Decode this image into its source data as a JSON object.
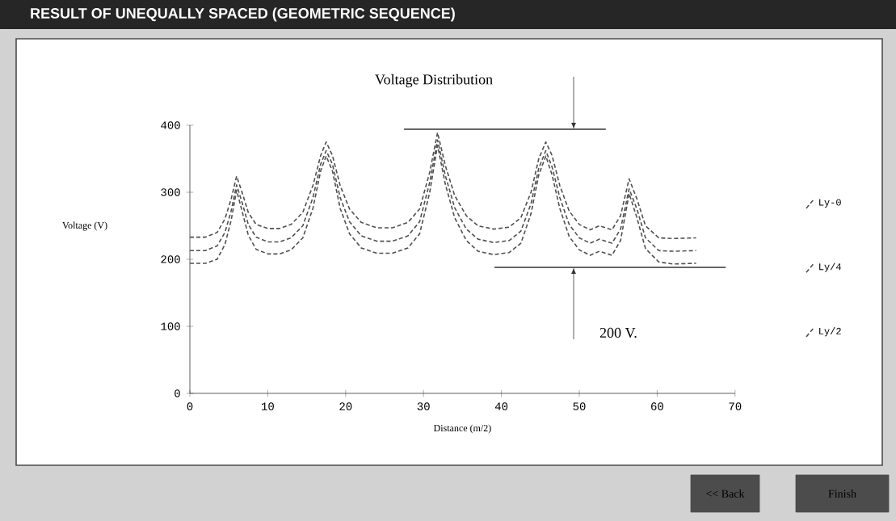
{
  "chart_data": {
    "type": "line",
    "title": "RESULT OF UNEQUALLY SPACED (GEOMETRIC SEQUENCE)",
    "xlabel": "Distance (m/2)",
    "x": [
      0,
      2,
      3.5,
      4.5,
      5.3,
      6.0,
      6.7,
      7.5,
      8.5,
      10,
      11.5,
      13,
      14.5,
      15.8,
      16.8,
      17.5,
      18.3,
      19.3,
      20.5,
      22,
      24,
      26,
      28,
      29.5,
      30.8,
      31.8,
      32.8,
      34,
      35.5,
      37,
      39,
      41,
      42.5,
      43.8,
      44.8,
      45.7,
      46.5,
      47.5,
      48.7,
      50,
      51.4,
      52.6,
      54.2,
      55.3,
      56.4,
      57.4,
      58.5,
      60.2,
      62,
      65
    ],
    "series": [
      {
        "name": "Ly-0",
        "color": "#505050",
        "values": [
          233,
          233,
          240,
          260,
          290,
          324,
          300,
          270,
          252,
          246,
          246,
          252,
          270,
          310,
          355,
          375,
          355,
          310,
          275,
          255,
          247,
          247,
          255,
          275,
          330,
          389,
          340,
          295,
          265,
          250,
          245,
          248,
          262,
          300,
          350,
          375,
          355,
          310,
          272,
          252,
          244,
          250,
          244,
          265,
          320,
          290,
          250,
          232,
          231,
          232
        ]
      },
      {
        "name": "Ly/4",
        "color": "#505050",
        "values": [
          213,
          213,
          220,
          240,
          272,
          311,
          285,
          252,
          233,
          226,
          226,
          232,
          250,
          292,
          342,
          362,
          342,
          292,
          256,
          235,
          227,
          227,
          235,
          256,
          315,
          378,
          325,
          277,
          245,
          230,
          225,
          228,
          242,
          283,
          336,
          362,
          338,
          292,
          252,
          232,
          224,
          230,
          224,
          245,
          305,
          275,
          232,
          213,
          212,
          213
        ]
      },
      {
        "name": "Ly/2",
        "color": "#505050",
        "values": [
          194,
          194,
          200,
          222,
          258,
          303,
          272,
          236,
          215,
          208,
          208,
          214,
          232,
          276,
          332,
          354,
          332,
          276,
          238,
          217,
          209,
          209,
          217,
          238,
          300,
          370,
          312,
          262,
          228,
          212,
          207,
          210,
          224,
          268,
          326,
          354,
          326,
          276,
          234,
          214,
          206,
          212,
          206,
          228,
          298,
          262,
          216,
          196,
          193,
          194
        ]
      }
    ],
    "xlim": [
      0,
      70
    ],
    "xticks": [
      0,
      10,
      20,
      30,
      40,
      50,
      60,
      70
    ],
    "ylim": [
      0,
      400
    ],
    "yticks": [
      0,
      100,
      200,
      300,
      400
    ],
    "annotations": [
      "Voltage Distribution",
      "200 V.",
      "Voltage (V)",
      "<< Back",
      "Finish"
    ],
    "ref_lines": [
      {
        "axis": "y",
        "value": 394,
        "color": "#333333"
      },
      {
        "axis": "y",
        "value": 188,
        "color": "#333333"
      }
    ],
    "legend": "right",
    "grid": false,
    "line_style": "dashed"
  }
}
